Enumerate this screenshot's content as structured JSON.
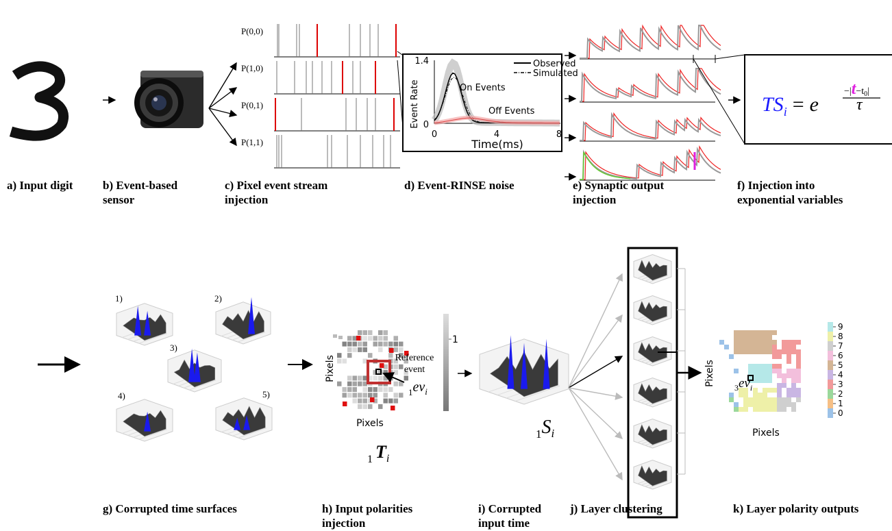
{
  "top_captions": {
    "a": [
      "a) Input digit"
    ],
    "b": [
      "b) Event-based",
      "sensor"
    ],
    "c": [
      "c) Pixel event stream",
      "injection"
    ],
    "d": [
      "d) Event-RINSE noise"
    ],
    "e": [
      "e) Synaptic output",
      "injection"
    ],
    "f": [
      "f) Injection into",
      "exponential variables"
    ]
  },
  "bottom_captions": {
    "g": [
      "g) Corrupted time surfaces"
    ],
    "h": [
      "h) Input polarities",
      "injection"
    ],
    "i": [
      "i) Corrupted",
      "input time"
    ],
    "j": [
      "j) Layer clustering"
    ],
    "k": [
      "k) Layer polarity outputs"
    ]
  },
  "pixel_streams": [
    "P(0,0)",
    "P(1,0)",
    "P(0,1)",
    "P(1,1)"
  ],
  "noise_plot": {
    "y_label": "Event Rate",
    "x_label": "Time(ms)",
    "y_ticks": [
      "1.4",
      "0"
    ],
    "x_ticks": [
      "0",
      "4",
      "8"
    ],
    "legend": [
      "Observed",
      "Simulated"
    ],
    "annotations": [
      "On Events",
      "Off Events"
    ]
  },
  "formula": {
    "lhs": "TS",
    "lhs_sub": "i",
    "eq": "=",
    "base": "e",
    "num_pre": "−|",
    "num_t": "t",
    "num_mid": "−t",
    "num_sub": "0",
    "num_end": "|",
    "den": "τ"
  },
  "time_surfaces": [
    "1)",
    "2)",
    "3)",
    "4)",
    "5)"
  ],
  "input_polarities": {
    "y_label": "Pixels",
    "x_label": "Pixels",
    "reference": [
      "Reference",
      "event"
    ],
    "event": {
      "pre": "1",
      "main": "ev",
      "sub": "i"
    },
    "colorbar_tick": "1",
    "surface": {
      "pre": "1",
      "main": "T",
      "sub": "i"
    }
  },
  "corrupted_surface": {
    "pre": "1",
    "main": "S",
    "sub": "i"
  },
  "polarity_outputs": {
    "y_label": "Pixels",
    "x_label": "Pixels",
    "event": {
      "pre": "3",
      "main": "ev",
      "sub": "i"
    },
    "colorbar": {
      "labels": [
        "9",
        "8",
        "7",
        "6",
        "5",
        "4",
        "3",
        "2",
        "1",
        "0"
      ],
      "colors": [
        "#b5e8e8",
        "#eef0a8",
        "#cfcfcf",
        "#f3bfdc",
        "#d4b595",
        "#c9b6e3",
        "#f29a9a",
        "#9bd89b",
        "#f6bf85",
        "#9cc2e8"
      ]
    }
  }
}
